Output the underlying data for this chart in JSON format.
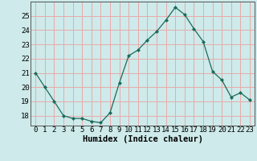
{
  "x": [
    0,
    1,
    2,
    3,
    4,
    5,
    6,
    7,
    8,
    9,
    10,
    11,
    12,
    13,
    14,
    15,
    16,
    17,
    18,
    19,
    20,
    21,
    22,
    23
  ],
  "y": [
    21,
    20,
    19,
    18,
    17.8,
    17.8,
    17.6,
    17.5,
    18.2,
    20.3,
    22.2,
    22.6,
    23.3,
    23.9,
    24.7,
    25.6,
    25.1,
    24.1,
    23.2,
    21.1,
    20.5,
    19.3,
    19.6,
    19.1
  ],
  "line_color": "#1a6b5a",
  "marker": "D",
  "marker_size": 2.0,
  "bg_color": "#ceeaea",
  "grid_color": "#e8aaaa",
  "xlabel": "Humidex (Indice chaleur)",
  "ylim": [
    17.3,
    26.0
  ],
  "xlim": [
    -0.5,
    23.5
  ],
  "yticks": [
    18,
    19,
    20,
    21,
    22,
    23,
    24,
    25
  ],
  "xticks": [
    0,
    1,
    2,
    3,
    4,
    5,
    6,
    7,
    8,
    9,
    10,
    11,
    12,
    13,
    14,
    15,
    16,
    17,
    18,
    19,
    20,
    21,
    22,
    23
  ],
  "label_fontsize": 7.5,
  "tick_fontsize": 6.5
}
